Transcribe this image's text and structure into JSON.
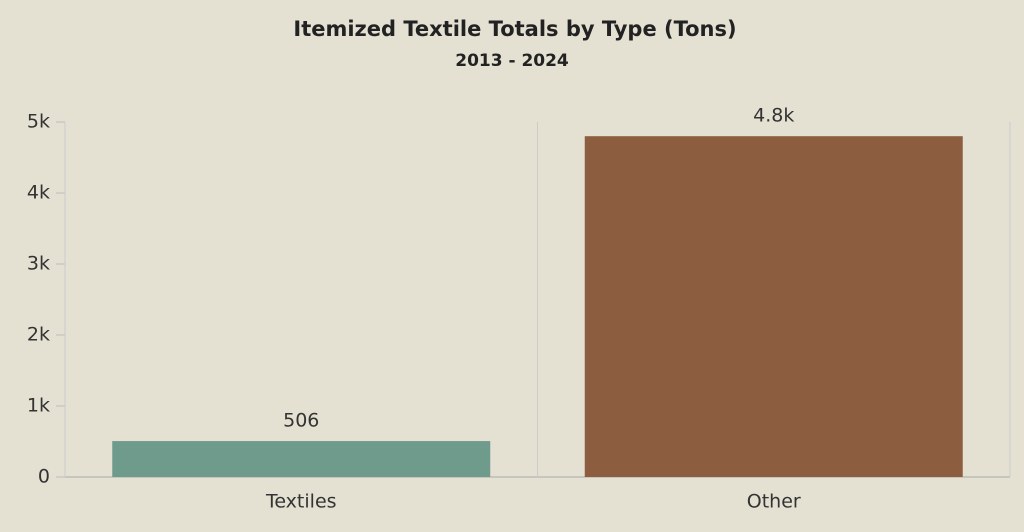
{
  "chart_data": {
    "type": "bar",
    "title": "Itemized Textile Totals by Type (Tons)",
    "subtitle": "2013 - 2024",
    "categories": [
      "Textiles",
      "Other"
    ],
    "values": [
      506,
      4800
    ],
    "value_labels": [
      "506",
      "4.8k"
    ],
    "colors": [
      "#6f9b8d",
      "#8c5e3f"
    ],
    "ylim": [
      0,
      5000
    ],
    "yticks": [
      0,
      {
        "value": 1000,
        "label": "1k"
      },
      {
        "value": 2000,
        "label": "2k"
      },
      {
        "value": 3000,
        "label": "3k"
      },
      {
        "value": 4000,
        "label": "4k"
      },
      {
        "value": 5000,
        "label": "5k"
      }
    ],
    "grid": false
  }
}
